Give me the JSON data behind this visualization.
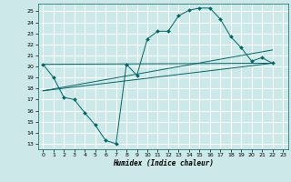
{
  "xlabel": "Humidex (Indice chaleur)",
  "bg_color": "#cce8e8",
  "grid_color": "#ffffff",
  "line_color": "#006666",
  "xlim": [
    -0.5,
    23.5
  ],
  "ylim": [
    12.5,
    25.7
  ],
  "xticks": [
    0,
    1,
    2,
    3,
    4,
    5,
    6,
    7,
    8,
    9,
    10,
    11,
    12,
    13,
    14,
    15,
    16,
    17,
    18,
    19,
    20,
    21,
    22,
    23
  ],
  "yticks": [
    13,
    14,
    15,
    16,
    17,
    18,
    19,
    20,
    21,
    22,
    23,
    24,
    25
  ],
  "curve_x": [
    0,
    1,
    2,
    3,
    4,
    5,
    6,
    7,
    8,
    9,
    10,
    11,
    12,
    13,
    14,
    15,
    16,
    17,
    18,
    19,
    20,
    21,
    22
  ],
  "curve_y": [
    20.2,
    19.0,
    17.2,
    17.0,
    15.8,
    14.7,
    13.3,
    13.0,
    20.2,
    19.2,
    22.5,
    23.2,
    23.2,
    24.6,
    25.1,
    25.3,
    25.3,
    24.3,
    22.7,
    21.7,
    20.5,
    20.8,
    20.3
  ],
  "line1_x": [
    0,
    22
  ],
  "line1_y": [
    20.2,
    20.3
  ],
  "line2_x": [
    0,
    22
  ],
  "line2_y": [
    17.8,
    20.3
  ],
  "line3_x": [
    0,
    22
  ],
  "line3_y": [
    17.8,
    21.5
  ]
}
